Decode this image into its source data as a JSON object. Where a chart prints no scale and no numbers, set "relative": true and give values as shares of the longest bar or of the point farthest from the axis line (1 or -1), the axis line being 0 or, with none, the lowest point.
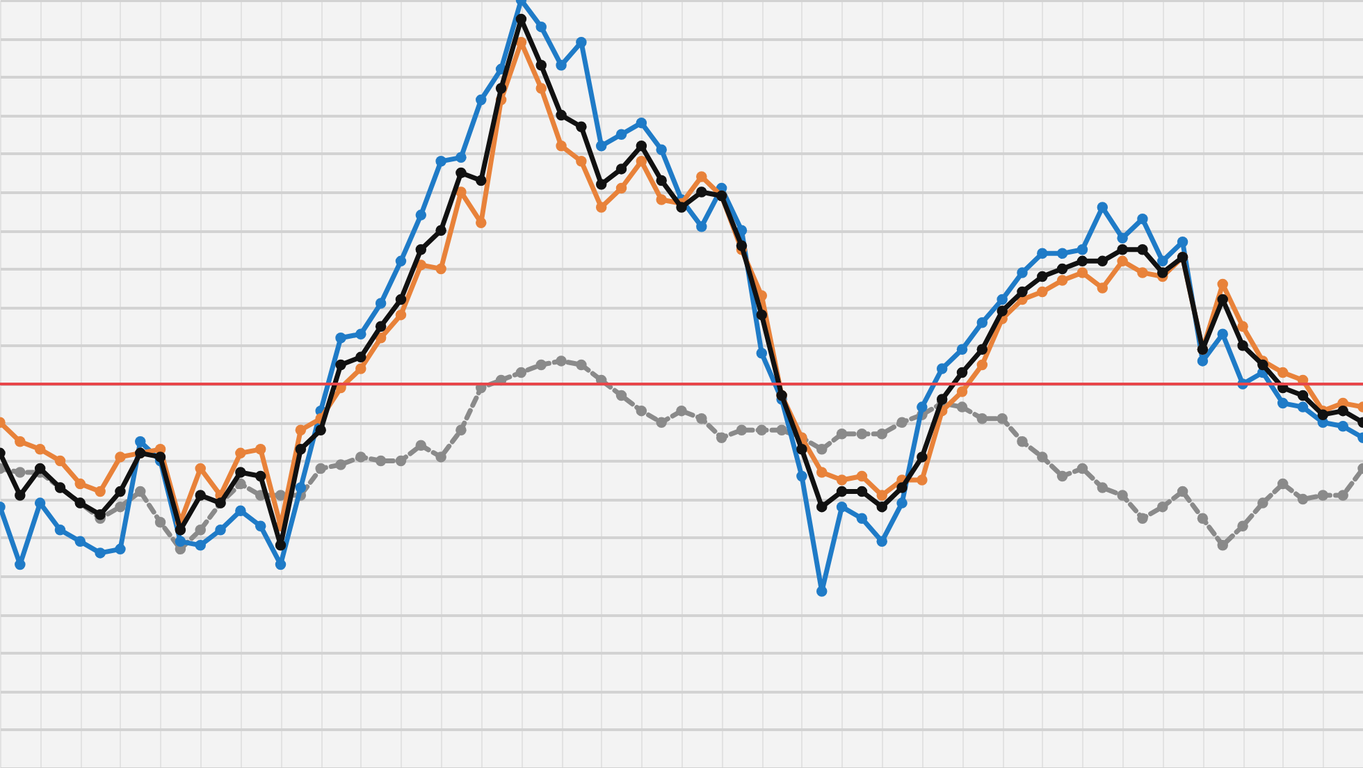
{
  "chart_data": {
    "type": "line",
    "relative": true,
    "grid": true,
    "marker": "circle",
    "line_style": "solid",
    "categories": [
      null,
      null,
      null,
      null,
      null,
      null,
      null,
      null,
      null,
      null,
      null,
      null,
      null,
      null,
      null,
      null,
      null,
      null,
      null,
      null,
      null,
      null,
      null,
      null,
      null,
      null,
      null,
      null,
      null,
      null,
      null,
      null,
      null,
      null,
      null,
      null,
      null,
      null,
      null,
      null,
      null,
      null,
      null,
      null,
      null,
      null,
      null,
      null,
      null,
      null,
      null,
      null,
      null,
      null,
      null,
      null,
      null,
      null,
      null,
      null,
      null,
      null,
      null,
      null,
      null,
      null,
      null,
      null,
      null
    ],
    "ref_lines": [
      {
        "axis": "y",
        "value": 0,
        "color": "#e8464a"
      }
    ],
    "series": [
      {
        "color": "#8a8a8a",
        "line_style": "dashed",
        "values": [
          -0.22,
          -0.23,
          -0.23,
          -0.27,
          -0.31,
          -0.35,
          -0.32,
          -0.28,
          -0.36,
          -0.43,
          -0.38,
          -0.31,
          -0.26,
          -0.29,
          -0.29,
          -0.29,
          -0.22,
          -0.21,
          -0.19,
          -0.2,
          -0.2,
          -0.16,
          -0.19,
          -0.12,
          -0.01,
          0.01,
          0.03,
          0.05,
          0.06,
          0.05,
          0.01,
          -0.03,
          -0.07,
          -0.1,
          -0.07,
          -0.09,
          -0.14,
          -0.12,
          -0.12,
          -0.12,
          -0.14,
          -0.17,
          -0.13,
          -0.13,
          -0.13,
          -0.1,
          -0.08,
          -0.05,
          -0.06,
          -0.09,
          -0.09,
          -0.15,
          -0.19,
          -0.24,
          -0.22,
          -0.27,
          -0.29,
          -0.35,
          -0.32,
          -0.28,
          -0.35,
          -0.42,
          -0.37,
          -0.31,
          -0.26,
          -0.3,
          -0.29,
          -0.29,
          -0.22
        ]
      },
      {
        "color": "#1f7bc7",
        "values": [
          -0.32,
          -0.47,
          -0.31,
          -0.38,
          -0.41,
          -0.44,
          -0.43,
          -0.15,
          -0.2,
          -0.41,
          -0.42,
          -0.38,
          -0.33,
          -0.37,
          -0.47,
          -0.27,
          -0.07,
          0.12,
          0.13,
          0.21,
          0.32,
          0.44,
          0.58,
          0.59,
          0.74,
          0.82,
          1,
          0.93,
          0.83,
          0.89,
          0.62,
          0.65,
          0.68,
          0.61,
          0.48,
          0.41,
          0.51,
          0.4,
          0.08,
          -0.04,
          -0.24,
          -0.54,
          -0.32,
          -0.35,
          -0.41,
          -0.31,
          -0.06,
          0.04,
          0.09,
          0.16,
          0.22,
          0.29,
          0.34,
          0.34,
          0.35,
          0.46,
          0.38,
          0.43,
          0.32,
          0.37,
          0.06,
          0.13,
          0,
          0.03,
          -0.05,
          -0.06,
          -0.1,
          -0.11,
          -0.14
        ]
      },
      {
        "color": "#e8823a",
        "values": [
          -0.1,
          -0.15,
          -0.17,
          -0.2,
          -0.26,
          -0.28,
          -0.19,
          -0.18,
          -0.17,
          -0.36,
          -0.22,
          -0.29,
          -0.18,
          -0.17,
          -0.37,
          -0.12,
          -0.09,
          -0.01,
          0.04,
          0.12,
          0.18,
          0.31,
          0.3,
          0.5,
          0.42,
          0.74,
          0.89,
          0.77,
          0.62,
          0.58,
          0.46,
          0.51,
          0.58,
          0.48,
          0.47,
          0.54,
          0.49,
          0.35,
          0.23,
          -0.03,
          -0.14,
          -0.23,
          -0.25,
          -0.24,
          -0.29,
          -0.25,
          -0.25,
          -0.07,
          -0.02,
          0.05,
          0.17,
          0.22,
          0.24,
          0.27,
          0.29,
          0.25,
          0.32,
          0.29,
          0.28,
          0.33,
          0.09,
          0.26,
          0.15,
          0.06,
          0.03,
          0.01,
          -0.07,
          -0.05,
          -0.06
        ]
      },
      {
        "color": "#111111",
        "values": [
          -0.18,
          -0.29,
          -0.22,
          -0.27,
          -0.31,
          -0.34,
          -0.28,
          -0.18,
          -0.19,
          -0.38,
          -0.29,
          -0.31,
          -0.23,
          -0.24,
          -0.42,
          -0.17,
          -0.12,
          0.05,
          0.07,
          0.15,
          0.22,
          0.35,
          0.4,
          0.55,
          0.53,
          0.77,
          0.95,
          0.83,
          0.7,
          0.67,
          0.52,
          0.56,
          0.62,
          0.53,
          0.46,
          0.5,
          0.49,
          0.36,
          0.18,
          -0.03,
          -0.17,
          -0.32,
          -0.28,
          -0.28,
          -0.32,
          -0.27,
          -0.19,
          -0.04,
          0.03,
          0.09,
          0.19,
          0.24,
          0.28,
          0.3,
          0.32,
          0.32,
          0.35,
          0.35,
          0.29,
          0.33,
          0.09,
          0.22,
          0.1,
          0.05,
          -0.01,
          -0.03,
          -0.08,
          -0.07,
          -0.1
        ]
      }
    ]
  }
}
